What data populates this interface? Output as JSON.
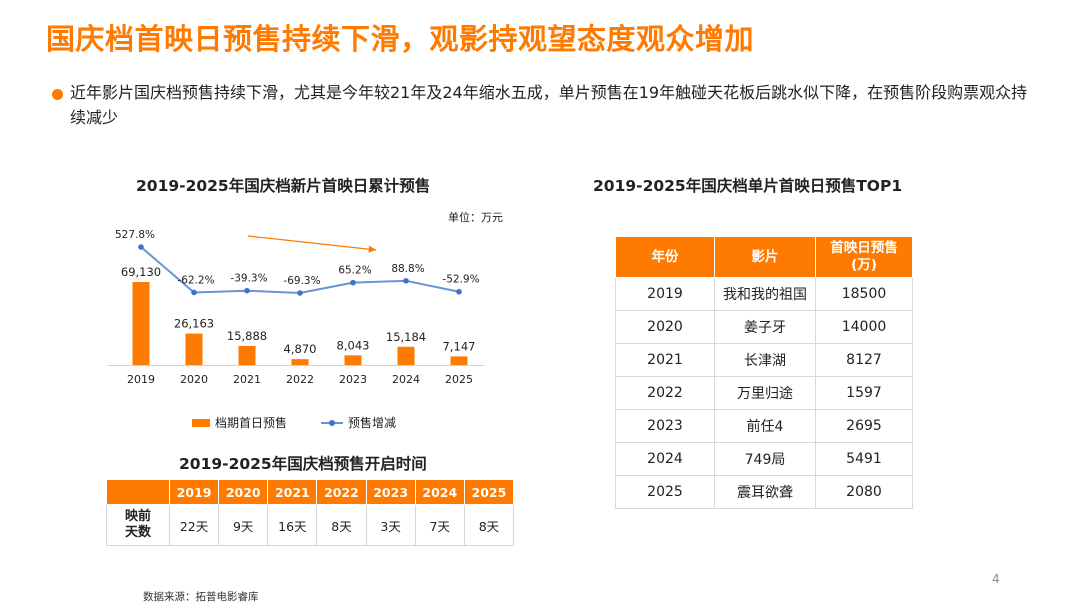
{
  "title": "国庆档首映日预售持续下滑，观影持观望态度观众增加",
  "bullet": "近年影片国庆档预售持续下滑，尤其是今年较21年及24年缩水五成，单片预售在19年触碰天花板后跳水似下降，在预售阶段购票观众持续减少",
  "chart_title": "2019-2025年国庆档新片首映日累计预售",
  "chart_unit": "单位：万元",
  "chart_data": {
    "type": "bar",
    "title": "2019-2025年国庆档新片首映日累计预售",
    "categories": [
      "2019",
      "2020",
      "2021",
      "2022",
      "2023",
      "2024",
      "2025"
    ],
    "series": [
      {
        "name": "档期首日预售",
        "type": "bar",
        "values": [
          69130,
          26163,
          15888,
          4870,
          8043,
          15184,
          7147
        ],
        "labels": [
          "69,130",
          "26,163",
          "15,888",
          "4,870",
          "8,043",
          "15,184",
          "7,147"
        ]
      },
      {
        "name": "预售增减",
        "type": "line",
        "values": [
          527.8,
          -62.2,
          -39.3,
          -69.3,
          65.2,
          88.8,
          -52.9
        ],
        "labels": [
          "527.8%",
          "-62.2%",
          "-39.3%",
          "-69.3%",
          "65.2%",
          "88.8%",
          "-52.9%"
        ]
      }
    ],
    "colors": {
      "bar": "#ff7a00",
      "line": "#6a92d8",
      "point": "#3f72cf",
      "arrow": "#ff7a00"
    },
    "legend": "bottom"
  },
  "legend": {
    "bar": "档期首日预售",
    "line": "预售增减"
  },
  "open_time": {
    "title": "2019-2025年国庆档预售开启时间",
    "years": [
      "2019",
      "2020",
      "2021",
      "2022",
      "2023",
      "2024",
      "2025"
    ],
    "row_label_1": "映前",
    "row_label_2": "天数",
    "values": [
      "22天",
      "9天",
      "16天",
      "8天",
      "3天",
      "7天",
      "8天"
    ]
  },
  "top1": {
    "title": "2019-2025年国庆档单片首映日预售TOP1",
    "headers": {
      "year": "年份",
      "film": "影片",
      "presale_1": "首映日预售",
      "presale_2": "(万)"
    },
    "rows": [
      {
        "year": "2019",
        "film": "我和我的祖国",
        "presale": "18500"
      },
      {
        "year": "2020",
        "film": "姜子牙",
        "presale": "14000"
      },
      {
        "year": "2021",
        "film": "长津湖",
        "presale": "8127"
      },
      {
        "year": "2022",
        "film": "万里归途",
        "presale": "1597"
      },
      {
        "year": "2023",
        "film": "前任4",
        "presale": "2695"
      },
      {
        "year": "2024",
        "film": "749局",
        "presale": "5491"
      },
      {
        "year": "2025",
        "film": "震耳欲聋",
        "presale": "2080"
      }
    ]
  },
  "page_number": "4",
  "source": "数据来源：拓普电影睿库"
}
